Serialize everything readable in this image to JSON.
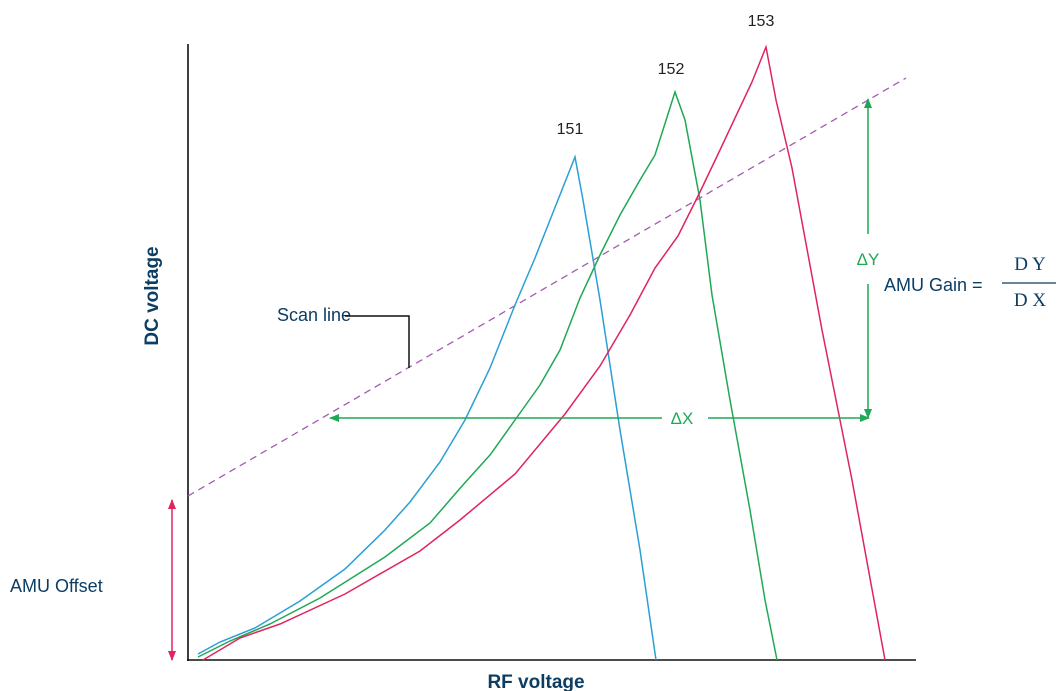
{
  "colors": {
    "axis": "#111111",
    "label": "#0c3d63",
    "peak_151": "#2a9fd6",
    "peak_152": "#1fa855",
    "peak_153": "#e0245e",
    "scan_line": "#a45ab4",
    "delta": "#1fa855",
    "offset": "#e0245e"
  },
  "axes": {
    "x_title": "RF voltage",
    "y_title": "DC voltage"
  },
  "peaks": [
    {
      "label": "151"
    },
    {
      "label": "152"
    },
    {
      "label": "153"
    }
  ],
  "annotations": {
    "scan_line": "Scan line",
    "amu_offset": "AMU Offset",
    "delta_x": "ΔX",
    "delta_y": "ΔY",
    "gain_label": "AMU Gain =",
    "gain_numerator": "D Y",
    "gain_denominator": "D X"
  }
}
